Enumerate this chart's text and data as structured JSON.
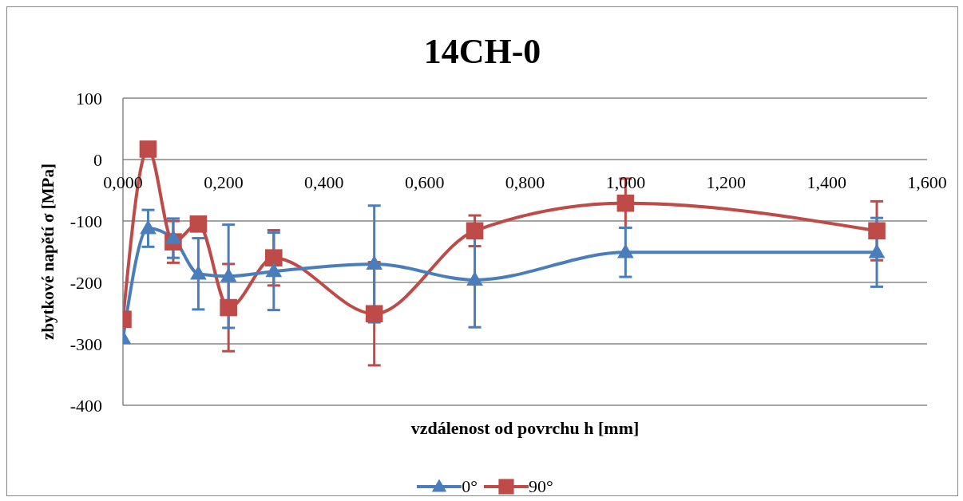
{
  "chart_data": {
    "type": "line",
    "title": "14CH-0",
    "xlabel": "vzdálenost od povrchu h [mm]",
    "ylabel": "zbytkové napětí σ [MPa]",
    "x": [
      0,
      0.05,
      0.1,
      0.15,
      0.21,
      0.3,
      0.5,
      0.7,
      1.0,
      1.5
    ],
    "series": [
      {
        "name": "0°",
        "color": "#4a7ebb",
        "marker": "triangle",
        "values": [
          -291,
          -112,
          -128,
          -186,
          -190,
          -182,
          -170,
          -196,
          -151,
          -151
        ],
        "errors": [
          null,
          30,
          32,
          58,
          84,
          63,
          95,
          77,
          40,
          56
        ]
      },
      {
        "name": "90°",
        "color": "#be4b48",
        "marker": "square",
        "values": [
          -260,
          17,
          -134,
          -105,
          -241,
          -160,
          -251,
          -116,
          -71,
          -116
        ],
        "errors": [
          null,
          null,
          34,
          null,
          71,
          45,
          84,
          25,
          40,
          48
        ]
      }
    ],
    "xlim": [
      0,
      1.6
    ],
    "xticks": [
      {
        "value": 0,
        "label": "0,000"
      },
      {
        "value": 0.2,
        "label": "0,200"
      },
      {
        "value": 0.4,
        "label": "0,400"
      },
      {
        "value": 0.6,
        "label": "0,600"
      },
      {
        "value": 0.8,
        "label": "0,800"
      },
      {
        "value": 1.0,
        "label": "1,000"
      },
      {
        "value": 1.2,
        "label": "1,200"
      },
      {
        "value": 1.4,
        "label": "1,400"
      },
      {
        "value": 1.6,
        "label": "1,600"
      }
    ],
    "ylim": [
      -400,
      100
    ],
    "yticks": [
      -400,
      -300,
      -200,
      -100,
      0,
      100
    ],
    "grid": "y",
    "legend": "bottom",
    "line_style": "solid"
  }
}
